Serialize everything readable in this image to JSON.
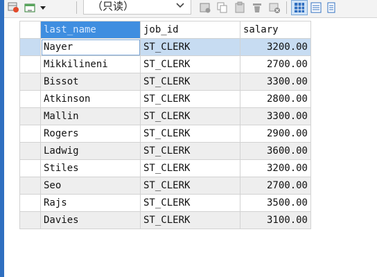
{
  "toolbar": {
    "mode_label": "（只读）",
    "icons": [
      "table-settings-icon",
      "add-row-icon",
      "dropdown-arrow-icon",
      "chevron-down-icon",
      "save-icon",
      "copy-icon",
      "paste-icon",
      "delete-icon",
      "clear-icon",
      "grid-view-icon",
      "form-view-icon",
      "text-view-icon"
    ]
  },
  "grid": {
    "columns": [
      "last_name",
      "job_id",
      "salary"
    ],
    "rows": [
      [
        "Nayer",
        "ST_CLERK",
        "3200.00"
      ],
      [
        "Mikkilineni",
        "ST_CLERK",
        "2700.00"
      ],
      [
        "Bissot",
        "ST_CLERK",
        "3300.00"
      ],
      [
        "Atkinson",
        "ST_CLERK",
        "2800.00"
      ],
      [
        "Mallin",
        "ST_CLERK",
        "3300.00"
      ],
      [
        "Rogers",
        "ST_CLERK",
        "2900.00"
      ],
      [
        "Ladwig",
        "ST_CLERK",
        "3600.00"
      ],
      [
        "Stiles",
        "ST_CLERK",
        "3200.00"
      ],
      [
        "Seo",
        "ST_CLERK",
        "2700.00"
      ],
      [
        "Rajs",
        "ST_CLERK",
        "3500.00"
      ],
      [
        "Davies",
        "ST_CLERK",
        "3100.00"
      ]
    ],
    "selected_row": 0
  },
  "colors": {
    "accent": "#3f8ee0",
    "selection": "#c7dcf2",
    "alt_row": "#eeeeee"
  }
}
